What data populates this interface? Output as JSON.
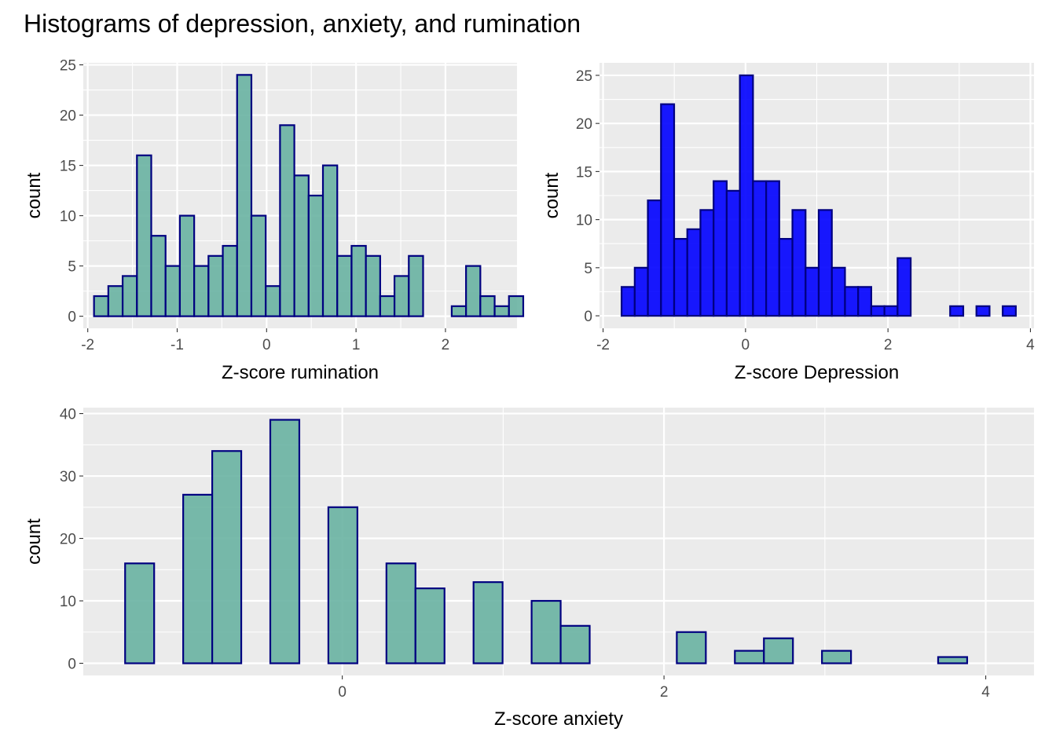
{
  "figure": {
    "title": "Histograms of depression, anxiety, and rumination"
  },
  "colors": {
    "panel_background": "#EBEBEB",
    "grid": "#FFFFFF",
    "teal_fill": "#69B3A2",
    "blue_fill": "#0000FF",
    "bar_outline": "#000080",
    "tick_text": "#4D4D4D"
  },
  "chart_data": [
    {
      "id": "rumination",
      "type": "histogram",
      "xlabel": "Z-score rumination",
      "ylabel": "count",
      "fill": "#69B3A2",
      "fill_opacity": 0.9,
      "outline": "#000080",
      "xlim": [
        -2.05,
        2.8
      ],
      "ylim": [
        -1.2,
        25.2
      ],
      "x_ticks": [
        -2,
        -1,
        0,
        1,
        2
      ],
      "x_tick_labels": [
        "-2",
        "-1",
        "0",
        "1",
        "2"
      ],
      "y_ticks": [
        0,
        5,
        10,
        15,
        20,
        25
      ],
      "y_tick_labels": [
        "0",
        "5",
        "10",
        "15",
        "20",
        "25"
      ],
      "bin_start": -1.93,
      "bin_width": 0.16,
      "counts": [
        2,
        3,
        4,
        16,
        8,
        5,
        10,
        5,
        6,
        7,
        24,
        10,
        3,
        19,
        14,
        12,
        15,
        6,
        7,
        6,
        2,
        4,
        6,
        0,
        0,
        1,
        5,
        2,
        1,
        2
      ],
      "grid": true
    },
    {
      "id": "depression",
      "type": "histogram",
      "xlabel": "Z-score Depression",
      "ylabel": "count",
      "fill": "#0000FF",
      "fill_opacity": 0.9,
      "outline": "#000080",
      "xlim": [
        -2.05,
        4.05
      ],
      "ylim": [
        -1.3,
        26.3
      ],
      "x_ticks": [
        -2,
        0,
        2,
        4
      ],
      "x_tick_labels": [
        "-2",
        "0",
        "2",
        "4"
      ],
      "y_ticks": [
        0,
        5,
        10,
        15,
        20,
        25
      ],
      "y_tick_labels": [
        "0",
        "5",
        "10",
        "15",
        "20",
        "25"
      ],
      "bin_start": -1.74,
      "bin_width": 0.1845,
      "counts": [
        3,
        5,
        12,
        22,
        8,
        9,
        11,
        14,
        13,
        25,
        14,
        14,
        8,
        11,
        5,
        11,
        5,
        3,
        3,
        1,
        1,
        6,
        0,
        0,
        0,
        1,
        0,
        1,
        0,
        1
      ],
      "grid": true
    },
    {
      "id": "anxiety",
      "type": "histogram",
      "xlabel": "Z-score anxiety",
      "ylabel": "count",
      "fill": "#69B3A2",
      "fill_opacity": 0.9,
      "outline": "#000080",
      "xlim": [
        -1.61,
        4.3
      ],
      "ylim": [
        -1.95,
        40.95
      ],
      "x_ticks": [
        0,
        2,
        4
      ],
      "x_tick_labels": [
        "0",
        "2",
        "4"
      ],
      "y_ticks": [
        0,
        10,
        20,
        30,
        40
      ],
      "y_tick_labels": [
        "0",
        "10",
        "20",
        "30",
        "40"
      ],
      "bin_start": -1.35,
      "bin_width": 0.1805,
      "counts": [
        16,
        0,
        27,
        34,
        0,
        39,
        0,
        25,
        0,
        16,
        12,
        0,
        13,
        0,
        10,
        6,
        0,
        0,
        0,
        5,
        0,
        2,
        4,
        0,
        2,
        0,
        0,
        0,
        1
      ],
      "grid": true
    }
  ]
}
